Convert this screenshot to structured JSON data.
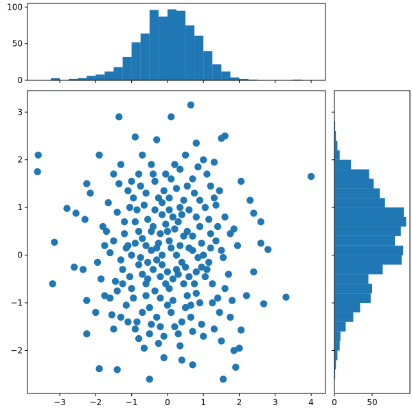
{
  "chart_data": [
    {
      "type": "scatter",
      "xlim": [
        -3.9,
        4.4
      ],
      "ylim": [
        -2.9,
        3.45
      ],
      "x_ticks": [
        -3,
        -2,
        -1,
        0,
        1,
        2,
        3,
        4
      ],
      "y_ticks": [
        -2,
        -1,
        0,
        1,
        2,
        3
      ],
      "color": "#1f77b4",
      "grid": false,
      "legend": "none",
      "points": [
        [
          -3.6,
          2.1
        ],
        [
          -3.62,
          1.75
        ],
        [
          4.0,
          1.65
        ],
        [
          0.65,
          3.15
        ],
        [
          0.1,
          2.9
        ],
        [
          -1.35,
          2.9
        ],
        [
          -3.15,
          0.27
        ],
        [
          -3.2,
          -0.6
        ],
        [
          3.3,
          -0.88
        ],
        [
          2.8,
          0.12
        ],
        [
          2.6,
          0.7
        ],
        [
          2.68,
          -1.02
        ],
        [
          -1.9,
          -2.38
        ],
        [
          -1.4,
          -2.4
        ],
        [
          -0.5,
          -2.6
        ],
        [
          1.55,
          -2.6
        ],
        [
          1.9,
          -2.35
        ],
        [
          1.6,
          2.5
        ],
        [
          -0.3,
          2.42
        ],
        [
          -0.9,
          2.48
        ],
        [
          1.5,
          2.45
        ],
        [
          0.8,
          2.35
        ],
        [
          -2.8,
          0.98
        ],
        [
          -2.55,
          0.88
        ],
        [
          -2.3,
          0.75
        ],
        [
          -2.6,
          -0.25
        ],
        [
          -2.35,
          -0.3
        ],
        [
          -2.25,
          -0.95
        ],
        [
          -2.25,
          -1.65
        ],
        [
          -2.0,
          -1.2
        ],
        [
          -1.5,
          -1.55
        ],
        [
          2.05,
          1.55
        ],
        [
          2.4,
          0.88
        ],
        [
          2.4,
          -0.35
        ],
        [
          2.2,
          -0.85
        ],
        [
          2.0,
          -1.95
        ],
        [
          2.05,
          -1.57
        ],
        [
          1.85,
          -2.0
        ],
        [
          2.6,
          0.25
        ],
        [
          2.3,
          1.15
        ],
        [
          -1.9,
          2.1
        ],
        [
          -2.25,
          1.5
        ],
        [
          -2.15,
          1.3
        ],
        [
          -1.3,
          1.9
        ],
        [
          -0.7,
          2.1
        ],
        [
          1.0,
          2.0
        ],
        [
          1.3,
          1.95
        ],
        [
          0.35,
          1.8
        ],
        [
          -0.4,
          1.7
        ],
        [
          1.85,
          0.55
        ],
        [
          1.95,
          0.2
        ],
        [
          -1.8,
          0.6
        ],
        [
          -1.95,
          -0.15
        ],
        [
          -1.75,
          -0.85
        ],
        [
          1.75,
          -1.3
        ],
        [
          -0.1,
          -2.15
        ],
        [
          0.4,
          -2.2
        ],
        [
          0.7,
          -2.3
        ],
        [
          -1.1,
          0.2
        ],
        [
          0.3,
          -0.4
        ],
        [
          -0.45,
          0.5
        ],
        [
          0.7,
          0.1
        ],
        [
          -0.2,
          -0.9
        ],
        [
          1.1,
          -0.3
        ],
        [
          -0.8,
          -0.2
        ],
        [
          0.15,
          0.8
        ],
        [
          -1.4,
          0.9
        ],
        [
          1.3,
          1.2
        ],
        [
          0.5,
          -1.1
        ],
        [
          -0.6,
          1.3
        ],
        [
          0.9,
          0.6
        ],
        [
          -0.3,
          -0.1
        ],
        [
          0.05,
          0.3
        ],
        [
          -1.0,
          -0.7
        ],
        [
          1.5,
          0.1
        ],
        [
          -0.9,
          0.7
        ],
        [
          0.45,
          -0.6
        ],
        [
          -0.15,
          1.1
        ],
        [
          0.8,
          -0.8
        ],
        [
          -1.25,
          -0.3
        ],
        [
          1.2,
          0.45
        ],
        [
          -0.55,
          -0.5
        ],
        [
          0.25,
          1.4
        ],
        [
          -0.7,
          -1.2
        ],
        [
          1.05,
          1.0
        ],
        [
          -1.5,
          0.3
        ],
        [
          0.6,
          0.95
        ],
        [
          -0.35,
          0.95
        ],
        [
          1.4,
          -0.9
        ],
        [
          -1.6,
          -0.9
        ],
        [
          0.0,
          -0.35
        ],
        [
          0.35,
          0.2
        ],
        [
          -0.8,
          1.7
        ],
        [
          0.7,
          1.6
        ],
        [
          -0.2,
          -1.5
        ],
        [
          0.95,
          -1.45
        ],
        [
          -1.1,
          -1.4
        ],
        [
          1.6,
          0.8
        ],
        [
          -1.75,
          0.2
        ],
        [
          0.1,
          -1.2
        ],
        [
          -0.45,
          0.1
        ],
        [
          0.55,
          0.5
        ],
        [
          -0.95,
          1.2
        ],
        [
          1.25,
          -0.6
        ],
        [
          -0.05,
          0.65
        ],
        [
          0.4,
          -0.15
        ],
        [
          -1.2,
          0.45
        ],
        [
          0.85,
          -0.05
        ],
        [
          -0.6,
          -0.85
        ],
        [
          1.7,
          -0.4
        ],
        [
          -1.35,
          1.5
        ],
        [
          0.2,
          1.9
        ],
        [
          -0.25,
          -1.85
        ],
        [
          1.1,
          1.7
        ],
        [
          -1.0,
          1.55
        ],
        [
          0.3,
          -1.65
        ],
        [
          -0.7,
          0.35
        ],
        [
          1.45,
          -1.2
        ],
        [
          -1.55,
          -1.25
        ],
        [
          0.75,
          1.3
        ],
        [
          -0.15,
          0.0
        ],
        [
          0.05,
          -0.7
        ],
        [
          -0.4,
          -0.3
        ],
        [
          0.6,
          -0.45
        ],
        [
          -0.85,
          0.95
        ],
        [
          1.0,
          -1.7
        ],
        [
          -0.5,
          -1.65
        ],
        [
          1.35,
          0.3
        ],
        [
          -1.3,
          -0.1
        ],
        [
          0.2,
          0.55
        ],
        [
          -0.1,
          1.35
        ],
        [
          0.9,
          -1.0
        ],
        [
          -1.05,
          1.0
        ],
        [
          1.2,
          1.45
        ],
        [
          -0.65,
          -1.95
        ],
        [
          0.5,
          2.1
        ],
        [
          -1.45,
          -0.55
        ],
        [
          1.55,
          -0.05
        ],
        [
          -0.25,
          0.25
        ],
        [
          0.45,
          1.15
        ],
        [
          -0.75,
          -0.05
        ],
        [
          0.15,
          -0.95
        ],
        [
          -1.15,
          -1.05
        ],
        [
          0.95,
          0.25
        ],
        [
          -0.05,
          -0.6
        ],
        [
          0.65,
          -1.3
        ],
        [
          -0.55,
          0.75
        ],
        [
          1.3,
          -1.55
        ],
        [
          -1.65,
          1.1
        ],
        [
          0.1,
          1.6
        ],
        [
          -0.3,
          -1.3
        ],
        [
          0.8,
          0.8
        ],
        [
          -0.9,
          -1.55
        ],
        [
          1.75,
          0.45
        ],
        [
          -1.85,
          -0.5
        ],
        [
          0.35,
          -1.9
        ],
        [
          -0.45,
          1.9
        ],
        [
          1.0,
          0.0
        ],
        [
          -0.15,
          -0.2
        ],
        [
          0.25,
          0.0
        ],
        [
          -0.6,
          0.2
        ],
        [
          0.55,
          -0.85
        ],
        [
          -1.0,
          0.0
        ],
        [
          0.7,
          0.4
        ],
        [
          -0.35,
          -0.75
        ],
        [
          1.15,
          -0.15
        ],
        [
          -0.8,
          0.5
        ],
        [
          0.05,
          0.95
        ],
        [
          -1.2,
          0.7
        ],
        [
          0.4,
          -1.4
        ],
        [
          -0.2,
          0.45
        ],
        [
          0.9,
          1.15
        ],
        [
          -0.7,
          -0.4
        ],
        [
          1.4,
          0.6
        ],
        [
          -1.4,
          -0.75
        ],
        [
          0.15,
          -0.5
        ],
        [
          -0.5,
          -1.1
        ],
        [
          0.6,
          0.15
        ],
        [
          -0.05,
          1.7
        ],
        [
          1.25,
          -1.0
        ],
        [
          -0.95,
          -0.9
        ],
        [
          0.3,
          0.7
        ],
        [
          -1.6,
          0.05
        ],
        [
          0.75,
          -0.6
        ],
        [
          -0.25,
          1.2
        ],
        [
          1.6,
          -0.7
        ],
        [
          -1.1,
          1.35
        ],
        [
          0.0,
          -1.05
        ],
        [
          0.5,
          -0.25
        ],
        [
          -0.4,
          0.6
        ],
        [
          1.05,
          -0.45
        ],
        [
          -0.65,
          1.05
        ],
        [
          0.2,
          -1.5
        ],
        [
          -1.3,
          -1.3
        ],
        [
          1.35,
          1.05
        ],
        [
          -0.1,
          -1.7
        ],
        [
          0.85,
          1.85
        ],
        [
          -0.85,
          -1.4
        ],
        [
          0.45,
          0.4
        ],
        [
          -0.3,
          0.15
        ],
        [
          1.8,
          -0.95
        ],
        [
          -1.7,
          0.5
        ],
        [
          0.1,
          0.15
        ],
        [
          -0.55,
          -0.15
        ],
        [
          0.65,
          -1.05
        ],
        [
          -0.15,
          0.85
        ],
        [
          1.15,
          0.75
        ],
        [
          -1.05,
          -0.45
        ],
        [
          0.35,
          1.0
        ],
        [
          -0.75,
          1.45
        ],
        [
          0.95,
          -0.25
        ],
        [
          -0.45,
          -1.45
        ],
        [
          1.5,
          -1.8
        ],
        [
          -1.5,
          1.7
        ],
        [
          0.0,
          0.5
        ],
        [
          0.25,
          -0.3
        ],
        [
          -0.9,
          0.25
        ],
        [
          0.7,
          -1.6
        ],
        [
          -0.2,
          -0.45
        ],
        [
          1.2,
          0.15
        ],
        [
          -1.25,
          -0.6
        ],
        [
          0.55,
          1.45
        ],
        [
          -0.6,
          -0.6
        ],
        [
          0.05,
          1.2
        ],
        [
          -1.15,
          0.15
        ],
        [
          0.8,
          -0.35
        ],
        [
          -0.35,
          1.55
        ],
        [
          1.45,
          1.35
        ],
        [
          -0.8,
          -1.75
        ],
        [
          0.4,
          0.85
        ]
      ]
    },
    {
      "type": "bar",
      "orientation": "vertical",
      "x_ticks": [
        -3,
        -2,
        -1,
        0,
        1,
        2,
        3,
        4
      ],
      "y_ticks": [
        0,
        50,
        100
      ],
      "ylim": [
        0,
        100
      ],
      "bin_width": 0.25,
      "bins": [
        -3.25,
        -3.0,
        -2.75,
        -2.5,
        -2.25,
        -2.0,
        -1.75,
        -1.5,
        -1.25,
        -1.0,
        -0.75,
        -0.5,
        -0.25,
        0.0,
        0.25,
        0.5,
        0.75,
        1.0,
        1.25,
        1.5,
        1.75,
        2.0,
        2.25,
        2.5,
        2.75,
        3.0,
        3.25,
        3.5,
        3.75,
        4.0
      ],
      "values": [
        3,
        0,
        2,
        3,
        6,
        8,
        12,
        18,
        32,
        52,
        64,
        96,
        87,
        97,
        95,
        75,
        61,
        40,
        22,
        12,
        4,
        2,
        1,
        0,
        0,
        0,
        0,
        1,
        0,
        0
      ]
    },
    {
      "type": "bar",
      "orientation": "horizontal",
      "x_ticks": [
        0,
        50
      ],
      "xlim": [
        0,
        100
      ],
      "y_ticks": [
        -2,
        -1,
        0,
        1,
        2,
        3
      ],
      "bin_width": 0.2,
      "bins": [
        -2.6,
        -2.4,
        -2.2,
        -2.0,
        -1.8,
        -1.6,
        -1.4,
        -1.2,
        -1.0,
        -0.8,
        -0.6,
        -0.4,
        -0.2,
        0.0,
        0.2,
        0.4,
        0.6,
        0.8,
        1.0,
        1.2,
        1.4,
        1.6,
        1.8,
        2.0,
        2.2,
        2.4,
        2.6
      ],
      "values": [
        1,
        2,
        4,
        7,
        8,
        15,
        25,
        34,
        48,
        50,
        45,
        64,
        89,
        91,
        80,
        88,
        95,
        92,
        67,
        60,
        52,
        46,
        22,
        7,
        4,
        2,
        1
      ]
    }
  ]
}
